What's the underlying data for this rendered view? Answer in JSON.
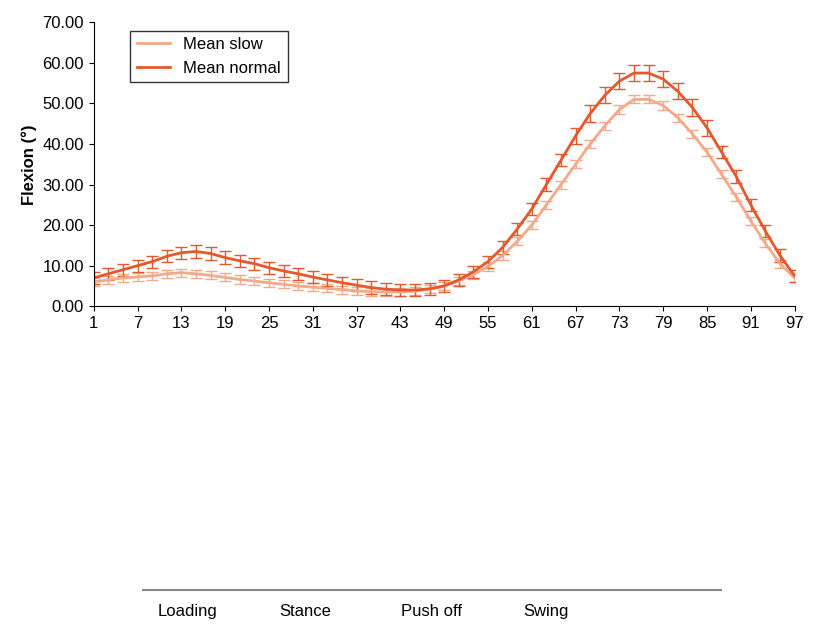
{
  "chart_data": {
    "type": "line",
    "y_label": "Flexion (°)",
    "x": [
      1,
      3,
      5,
      7,
      9,
      11,
      13,
      15,
      17,
      19,
      21,
      23,
      25,
      27,
      29,
      31,
      33,
      35,
      37,
      39,
      41,
      43,
      45,
      47,
      49,
      51,
      53,
      55,
      57,
      59,
      61,
      63,
      65,
      67,
      69,
      71,
      73,
      75,
      77,
      79,
      81,
      83,
      85,
      87,
      89,
      91,
      93,
      95,
      97
    ],
    "series": [
      {
        "name": "Mean slow",
        "color": "#f4a98a",
        "values": [
          6,
          6.5,
          7,
          7.2,
          7.5,
          8,
          8.3,
          8,
          7.6,
          7.1,
          6.6,
          6.2,
          5.8,
          5.4,
          5,
          4.7,
          4.4,
          4.1,
          3.8,
          3.6,
          3.5,
          3.5,
          3.7,
          4.2,
          5,
          6.2,
          7.8,
          9.8,
          12.5,
          16,
          20,
          25,
          30,
          35,
          40,
          44.5,
          48.5,
          51,
          51,
          49.5,
          46.5,
          42.5,
          38,
          32.5,
          27,
          21,
          15.5,
          10.5,
          7
        ],
        "errors": [
          1,
          1,
          1,
          1,
          1,
          1,
          1,
          1,
          1,
          1,
          1,
          1,
          1,
          1,
          1,
          1,
          1,
          1,
          1,
          1,
          1,
          1,
          1,
          1,
          1,
          1,
          1,
          1,
          1,
          1,
          1,
          1,
          1,
          1,
          1,
          1,
          1,
          1,
          1,
          1,
          1,
          1,
          1,
          1,
          1,
          1,
          1,
          1,
          1
        ]
      },
      {
        "name": "Mean normal",
        "color": "#e5582b",
        "values": [
          7,
          8,
          9,
          10,
          11,
          12.3,
          13.2,
          13.5,
          13,
          12,
          11.2,
          10.5,
          9.5,
          8.7,
          8,
          7.2,
          6.5,
          5.8,
          5.2,
          4.6,
          4.2,
          4,
          4,
          4.3,
          5,
          6.5,
          8.5,
          11,
          14.5,
          19,
          24,
          30,
          36,
          42,
          47.5,
          52,
          55.5,
          57.5,
          57.5,
          56,
          53,
          49,
          44,
          38,
          32,
          25,
          18.5,
          12.5,
          7.5
        ],
        "errors": [
          1.5,
          1.5,
          1.5,
          1.5,
          1.5,
          1.5,
          1.5,
          1.5,
          1.5,
          1.5,
          1.5,
          1.5,
          1.5,
          1.5,
          1.5,
          1.5,
          1.5,
          1.5,
          1.5,
          1.5,
          1.5,
          1.5,
          1.5,
          1.5,
          1.5,
          1.5,
          1.5,
          1.5,
          1.5,
          1.5,
          1.5,
          1.5,
          1.5,
          2,
          2,
          2,
          2,
          2,
          2,
          2,
          2,
          2,
          2,
          1.5,
          1.5,
          1.5,
          1.5,
          1.5,
          1.5
        ]
      }
    ],
    "xlim": [
      1,
      97
    ],
    "xticks": [
      1,
      7,
      13,
      19,
      25,
      31,
      37,
      43,
      49,
      55,
      61,
      67,
      73,
      79,
      85,
      91,
      97
    ],
    "ylim": [
      0,
      70
    ],
    "yticks": [
      {
        "value": 0,
        "label": "0.00"
      },
      {
        "value": 10,
        "label": "10.00"
      },
      {
        "value": 20,
        "label": "20.00"
      },
      {
        "value": 30,
        "label": "30.00"
      },
      {
        "value": 40,
        "label": "40.00"
      },
      {
        "value": 50,
        "label": "50.00"
      },
      {
        "value": 60,
        "label": "60.00"
      },
      {
        "value": 70,
        "label": "70.00"
      }
    ],
    "legend": "upper left",
    "annotations": [
      "Loading",
      "Stance",
      "Push off",
      "Swing"
    ]
  }
}
